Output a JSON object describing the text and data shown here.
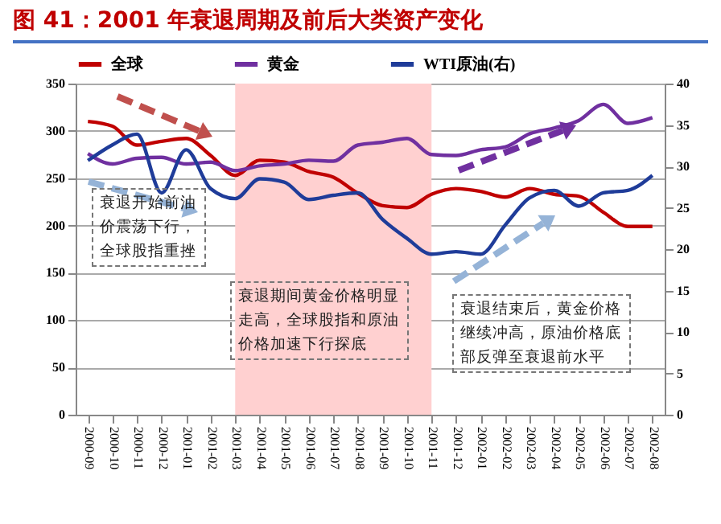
{
  "chart_data": {
    "type": "line",
    "title": "图 41：2001 年衰退周期及前后大类资产变化",
    "categories": [
      "2000-09",
      "2000-10",
      "2000-11",
      "2000-12",
      "2001-01",
      "2001-02",
      "2001-03",
      "2001-04",
      "2001-05",
      "2001-06",
      "2001-07",
      "2001-08",
      "2001-09",
      "2001-10",
      "2001-11",
      "2001-12",
      "2002-01",
      "2002-02",
      "2002-03",
      "2002-04",
      "2002-05",
      "2002-06",
      "2002-07",
      "2002-08"
    ],
    "series": [
      {
        "name": "全球",
        "color": "#c00000",
        "values": [
          310,
          305,
          285,
          289,
          292,
          274,
          253,
          269,
          267,
          257,
          251,
          234,
          221,
          219,
          233,
          239,
          236,
          230,
          239,
          233,
          231,
          214,
          199,
          199
        ]
      },
      {
        "name": "黄金",
        "color": "#7030a0",
        "values": [
          276,
          265,
          271,
          272,
          265,
          267,
          258,
          263,
          265,
          269,
          268,
          285,
          288,
          292,
          275,
          274,
          280,
          283,
          297,
          303,
          311,
          328,
          308,
          314
        ]
      },
      {
        "name": "WTI原油(右)",
        "color": "#1f3c99",
        "axis": "y2",
        "values": [
          30.7,
          32.6,
          33.9,
          26.8,
          32.0,
          27.3,
          26.1,
          28.5,
          28.1,
          26.0,
          26.5,
          26.8,
          23.6,
          21.3,
          19.4,
          19.7,
          19.4,
          22.9,
          26.2,
          27.1,
          25.2,
          26.8,
          27.1,
          28.9
        ]
      }
    ],
    "ylim": [
      0,
      350
    ],
    "yticks": [
      0,
      50,
      100,
      150,
      200,
      250,
      300,
      350
    ],
    "y2lim": [
      0,
      40
    ],
    "y2ticks": [
      0,
      5,
      10,
      15,
      20,
      25,
      30,
      35,
      40
    ],
    "bands": [
      {
        "axis": "x",
        "from": "2001-03",
        "to": "2001-11",
        "color": "#ffd0d0"
      }
    ],
    "annotations": [
      "衰退开始前油价震荡下行，全球股指重挫",
      "衰退期间黄金价格明显走高，全球股指和原油价格加速下行探底",
      "衰退结束后，黄金价格继续冲高，原油价格底部反弹至衰退前水平"
    ],
    "grid": "y",
    "legend": "top",
    "marker": "none",
    "line_style": "solid"
  }
}
